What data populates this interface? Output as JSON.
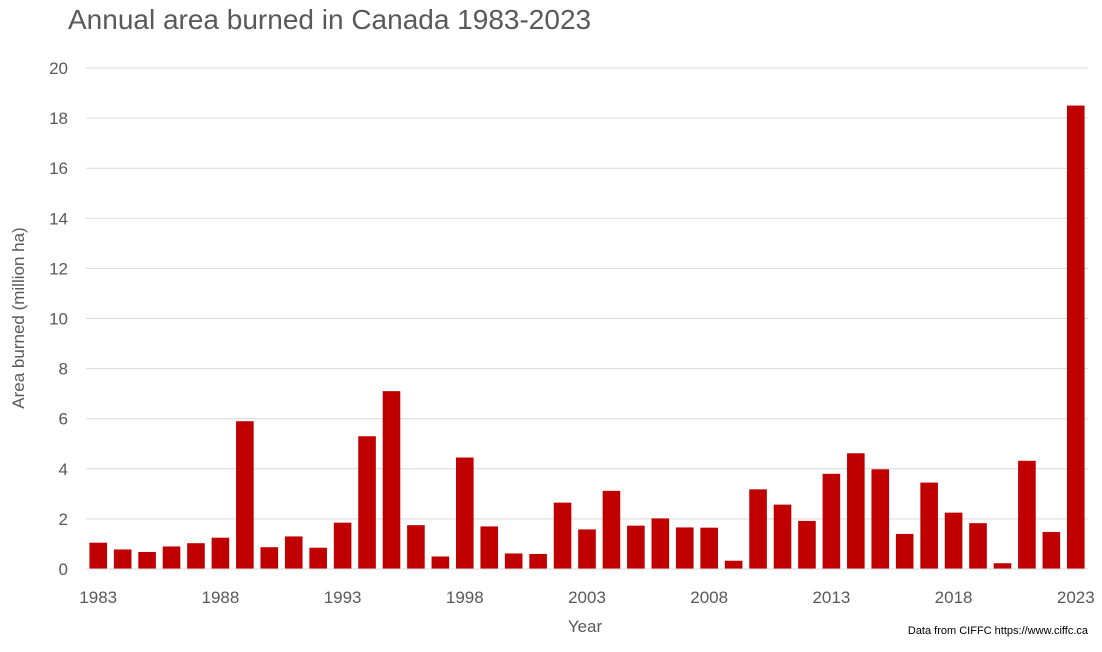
{
  "chart_data": {
    "type": "bar",
    "title": "Annual area burned in Canada 1983-2023",
    "xlabel": "Year",
    "ylabel": "Area burned (million ha)",
    "ylim": [
      0,
      20
    ],
    "yticks": [
      0,
      2,
      4,
      6,
      8,
      10,
      12,
      14,
      16,
      18,
      20
    ],
    "xtick_labels": [
      "1983",
      "1988",
      "1993",
      "1998",
      "2003",
      "2008",
      "2013",
      "2018",
      "2023"
    ],
    "grid": "horizontal",
    "bar_color": "#C00000",
    "categories": [
      1983,
      1984,
      1985,
      1986,
      1987,
      1988,
      1989,
      1990,
      1991,
      1992,
      1993,
      1994,
      1995,
      1996,
      1997,
      1998,
      1999,
      2000,
      2001,
      2002,
      2003,
      2004,
      2005,
      2006,
      2007,
      2008,
      2009,
      2010,
      2011,
      2012,
      2013,
      2014,
      2015,
      2016,
      2017,
      2018,
      2019,
      2020,
      2021,
      2022,
      2023
    ],
    "values": [
      1.05,
      0.78,
      0.68,
      0.9,
      1.03,
      1.25,
      5.9,
      0.87,
      1.3,
      0.85,
      1.85,
      5.3,
      7.1,
      1.75,
      0.5,
      4.45,
      1.7,
      0.62,
      0.6,
      2.65,
      1.58,
      3.12,
      1.73,
      2.02,
      1.66,
      1.65,
      0.33,
      3.18,
      2.57,
      1.92,
      3.8,
      4.62,
      3.98,
      1.4,
      3.45,
      2.25,
      1.83,
      0.23,
      4.32,
      1.48,
      18.5
    ]
  },
  "source_note": "Data from CIFFC https://www.ciffc.ca"
}
